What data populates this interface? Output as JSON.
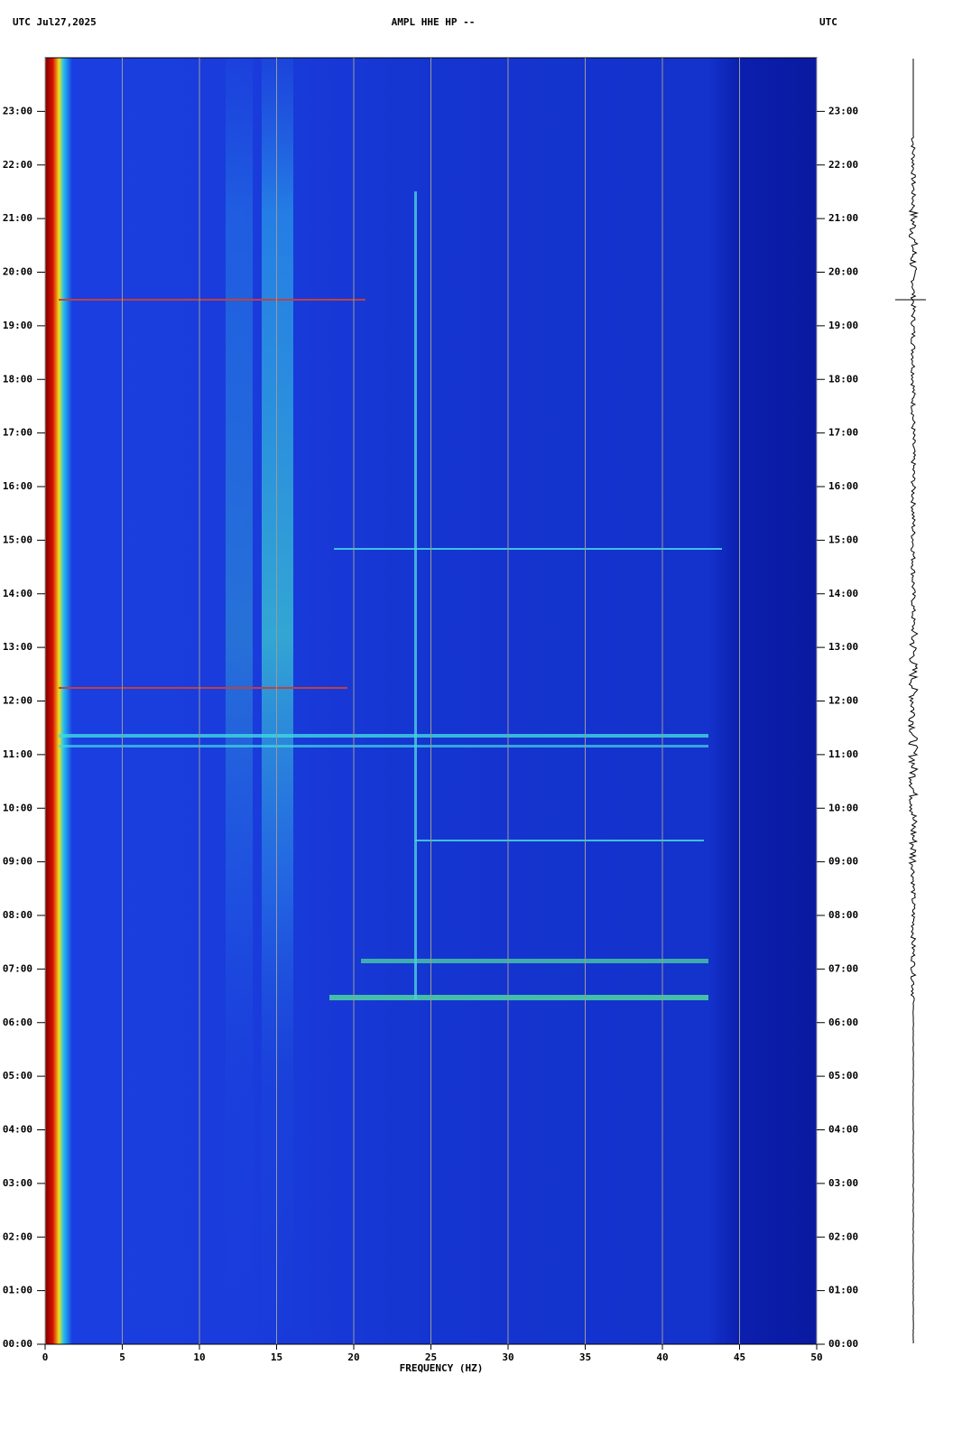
{
  "chart_data": {
    "type": "spectrogram",
    "title": "AMPL HHE HP --",
    "header_left": "UTC  Jul27,2025",
    "header_right": "UTC",
    "x_label": "FREQUENCY (HZ)",
    "xlim": [
      0,
      50
    ],
    "xticks": [
      0,
      5,
      10,
      15,
      20,
      25,
      30,
      35,
      40,
      45,
      50
    ],
    "ylim": [
      0,
      24
    ],
    "yticks": [
      {
        "value": 0,
        "label": "00:00"
      },
      {
        "value": 1,
        "label": "01:00"
      },
      {
        "value": 2,
        "label": "02:00"
      },
      {
        "value": 3,
        "label": "03:00"
      },
      {
        "value": 4,
        "label": "04:00"
      },
      {
        "value": 5,
        "label": "05:00"
      },
      {
        "value": 6,
        "label": "06:00"
      },
      {
        "value": 7,
        "label": "07:00"
      },
      {
        "value": 8,
        "label": "08:00"
      },
      {
        "value": 9,
        "label": "09:00"
      },
      {
        "value": 10,
        "label": "10:00"
      },
      {
        "value": 11,
        "label": "11:00"
      },
      {
        "value": 12,
        "label": "12:00"
      },
      {
        "value": 13,
        "label": "13:00"
      },
      {
        "value": 14,
        "label": "14:00"
      },
      {
        "value": 15,
        "label": "15:00"
      },
      {
        "value": 16,
        "label": "16:00"
      },
      {
        "value": 17,
        "label": "17:00"
      },
      {
        "value": 18,
        "label": "18:00"
      },
      {
        "value": 19,
        "label": "19:00"
      },
      {
        "value": 20,
        "label": "20:00"
      },
      {
        "value": 21,
        "label": "21:00"
      },
      {
        "value": 22,
        "label": "22:00"
      },
      {
        "value": 23,
        "label": "23:00"
      }
    ],
    "grid": true
  }
}
